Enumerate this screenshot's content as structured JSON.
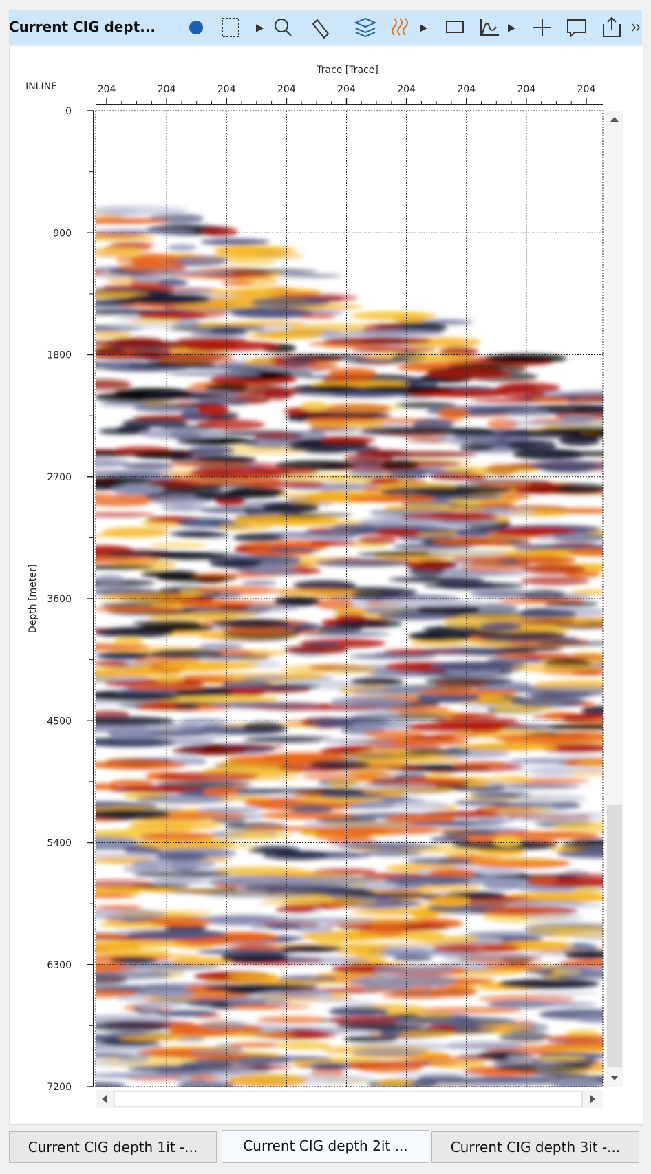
{
  "toolbar": {
    "title": "Current CIG dept..."
  },
  "plot": {
    "x_axis_title": "Trace [Trace]",
    "inline_label": "INLINE",
    "trace_ticks": [
      "204",
      "204",
      "204",
      "204",
      "204",
      "204",
      "204",
      "204",
      "204"
    ],
    "y_axis_title": "Depth [meter]",
    "ylim": [
      0,
      7200
    ],
    "yticks": [
      0,
      900,
      1800,
      2700,
      3600,
      4500,
      5400,
      6300,
      7200
    ]
  },
  "tabs": [
    "Current CIG depth 1it -...",
    "Current CIG depth 2it ...",
    "Current CIG depth 3it -..."
  ]
}
